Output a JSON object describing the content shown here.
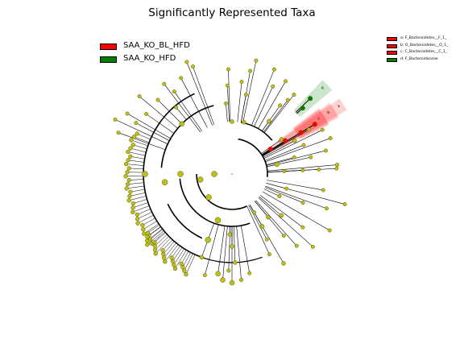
{
  "title": "Significantly Represented Taxa",
  "colors": {
    "red": "#ff0000",
    "green": "#008000",
    "node_fill": "#bfbf1a",
    "node_edge": "#555500",
    "branch": "#000000"
  },
  "main_legend": [
    {
      "label": "SAA_KO_BL_HFD",
      "color": "#ff0000"
    },
    {
      "label": "SAA_KO_HFD",
      "color": "#008000"
    }
  ],
  "taxa_legend": [
    {
      "label": "a: F_Bacteroidetes__F_1_",
      "color": "#ff0000"
    },
    {
      "label": "b: O_Bacteroidetes__O_1_",
      "color": "#ff0000"
    },
    {
      "label": "c: C_Bacteroidetes__C_1_",
      "color": "#ff0000"
    },
    {
      "label": "d: F_Bacteroidaceae",
      "color": "#008000"
    }
  ],
  "highlight_labels": [
    "a",
    "b",
    "c",
    "d"
  ]
}
